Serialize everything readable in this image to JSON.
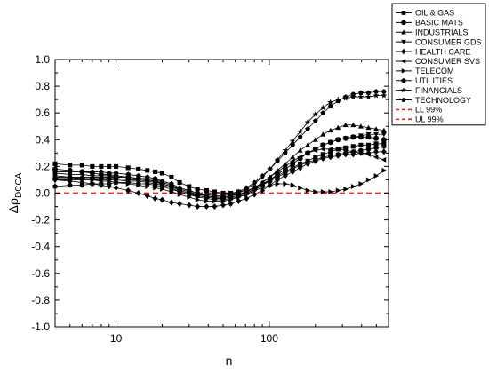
{
  "chart_data": {
    "type": "line",
    "xlabel": "n",
    "ylabel_main": "Δρ",
    "ylabel_sub": "DCCA",
    "xscale": "log",
    "xlim": [
      4,
      600
    ],
    "ylim": [
      -1.0,
      1.0
    ],
    "x_ticks": [
      10,
      100
    ],
    "x_tick_labels": [
      "10",
      "100"
    ],
    "y_ticks": [
      -1.0,
      -0.8,
      -0.6,
      -0.4,
      -0.2,
      0.0,
      0.2,
      0.4,
      0.6,
      0.8,
      1.0
    ],
    "y_tick_labels": [
      "-1.0",
      "-0.8",
      "-0.6",
      "-0.4",
      "-0.2",
      "0.0",
      "0.2",
      "0.4",
      "0.6",
      "0.8",
      "1.0"
    ],
    "grid": false,
    "legend_position": "top-right",
    "x": [
      4,
      5,
      6,
      7,
      8,
      9,
      10,
      12,
      14,
      16,
      18,
      20,
      23,
      26,
      30,
      34,
      39,
      44,
      50,
      56,
      63,
      71,
      80,
      90,
      101,
      113,
      127,
      142,
      159,
      178,
      200,
      224,
      251,
      281,
      315,
      353,
      396,
      444,
      498,
      560
    ],
    "series": [
      {
        "name": "OIL & GAS",
        "marker": "square",
        "values": [
          0.22,
          0.21,
          0.21,
          0.2,
          0.2,
          0.2,
          0.2,
          0.19,
          0.18,
          0.17,
          0.16,
          0.15,
          0.12,
          0.08,
          0.05,
          0.03,
          0.02,
          0.01,
          0.0,
          0.0,
          0.01,
          0.02,
          0.04,
          0.07,
          0.1,
          0.13,
          0.16,
          0.19,
          0.22,
          0.24,
          0.27,
          0.29,
          0.31,
          0.33,
          0.34,
          0.35,
          0.36,
          0.36,
          0.37,
          0.37
        ]
      },
      {
        "name": "BASIC MATS",
        "marker": "circle",
        "values": [
          0.18,
          0.17,
          0.16,
          0.15,
          0.14,
          0.14,
          0.13,
          0.12,
          0.11,
          0.1,
          0.09,
          0.07,
          0.05,
          0.02,
          0.0,
          -0.02,
          -0.03,
          -0.04,
          -0.04,
          -0.03,
          -0.02,
          0.0,
          0.03,
          0.06,
          0.1,
          0.14,
          0.18,
          0.22,
          0.26,
          0.3,
          0.33,
          0.36,
          0.38,
          0.4,
          0.41,
          0.42,
          0.42,
          0.42,
          0.41,
          0.4
        ]
      },
      {
        "name": "INDUSTRIALS",
        "marker": "triangle-up",
        "values": [
          0.12,
          0.12,
          0.12,
          0.12,
          0.12,
          0.12,
          0.12,
          0.12,
          0.11,
          0.11,
          0.1,
          0.09,
          0.07,
          0.04,
          0.02,
          0.0,
          -0.02,
          -0.03,
          -0.03,
          -0.02,
          -0.01,
          0.01,
          0.04,
          0.08,
          0.12,
          0.17,
          0.22,
          0.27,
          0.32,
          0.36,
          0.4,
          0.44,
          0.47,
          0.49,
          0.51,
          0.51,
          0.5,
          0.49,
          0.48,
          0.47
        ]
      },
      {
        "name": "CONSUMER GDS",
        "marker": "triangle-down",
        "values": [
          0.1,
          0.1,
          0.1,
          0.1,
          0.1,
          0.1,
          0.1,
          0.09,
          0.09,
          0.08,
          0.07,
          0.06,
          0.04,
          0.01,
          -0.01,
          -0.03,
          -0.04,
          -0.05,
          -0.05,
          -0.04,
          -0.03,
          -0.01,
          0.02,
          0.06,
          0.1,
          0.14,
          0.18,
          0.22,
          0.26,
          0.3,
          0.33,
          0.36,
          0.38,
          0.4,
          0.41,
          0.42,
          0.43,
          0.44,
          0.44,
          0.44
        ]
      },
      {
        "name": "HEALTH CARE",
        "marker": "diamond",
        "values": [
          0.1,
          0.09,
          0.08,
          0.07,
          0.06,
          0.05,
          0.04,
          0.02,
          0.0,
          -0.02,
          -0.04,
          -0.05,
          -0.07,
          -0.08,
          -0.09,
          -0.1,
          -0.1,
          -0.1,
          -0.09,
          -0.08,
          -0.06,
          -0.04,
          -0.01,
          0.02,
          0.06,
          0.1,
          0.13,
          0.16,
          0.19,
          0.22,
          0.24,
          0.26,
          0.27,
          0.28,
          0.29,
          0.29,
          0.3,
          0.3,
          0.31,
          0.31
        ]
      },
      {
        "name": "CONSUMER SVS",
        "marker": "triangle-left",
        "values": [
          0.15,
          0.14,
          0.14,
          0.13,
          0.13,
          0.13,
          0.12,
          0.12,
          0.11,
          0.1,
          0.09,
          0.08,
          0.06,
          0.03,
          0.01,
          -0.01,
          -0.02,
          -0.03,
          -0.03,
          -0.02,
          -0.01,
          0.01,
          0.04,
          0.08,
          0.12,
          0.16,
          0.2,
          0.24,
          0.27,
          0.3,
          0.32,
          0.33,
          0.33,
          0.33,
          0.32,
          0.31,
          0.3,
          0.29,
          0.27,
          0.25
        ]
      },
      {
        "name": "TELECOM",
        "marker": "triangle-right",
        "values": [
          0.13,
          0.12,
          0.11,
          0.1,
          0.09,
          0.09,
          0.08,
          0.07,
          0.06,
          0.05,
          0.04,
          0.03,
          0.01,
          -0.01,
          -0.03,
          -0.05,
          -0.06,
          -0.06,
          -0.06,
          -0.05,
          -0.03,
          -0.01,
          0.02,
          0.04,
          0.06,
          0.07,
          0.07,
          0.06,
          0.04,
          0.02,
          0.01,
          0.01,
          0.01,
          0.02,
          0.03,
          0.05,
          0.07,
          0.1,
          0.13,
          0.17
        ]
      },
      {
        "name": "UTILITIES",
        "marker": "hexagon",
        "values": [
          0.05,
          0.06,
          0.06,
          0.07,
          0.07,
          0.07,
          0.08,
          0.08,
          0.07,
          0.07,
          0.06,
          0.05,
          0.03,
          0.01,
          -0.01,
          -0.02,
          -0.03,
          -0.04,
          -0.04,
          -0.03,
          -0.02,
          0.0,
          0.03,
          0.06,
          0.09,
          0.12,
          0.15,
          0.18,
          0.21,
          0.23,
          0.25,
          0.27,
          0.28,
          0.29,
          0.3,
          0.31,
          0.32,
          0.33,
          0.34,
          0.35
        ]
      },
      {
        "name": "FINANCIALS",
        "marker": "star",
        "values": [
          0.11,
          0.11,
          0.11,
          0.11,
          0.11,
          0.11,
          0.11,
          0.1,
          0.1,
          0.09,
          0.08,
          0.07,
          0.05,
          0.03,
          0.01,
          -0.01,
          -0.02,
          -0.03,
          -0.03,
          -0.02,
          0.0,
          0.03,
          0.07,
          0.12,
          0.18,
          0.25,
          0.32,
          0.39,
          0.46,
          0.53,
          0.59,
          0.64,
          0.68,
          0.7,
          0.71,
          0.72,
          0.72,
          0.72,
          0.73,
          0.73
        ]
      },
      {
        "name": "TECHNOLOGY",
        "marker": "pentagon",
        "values": [
          0.16,
          0.16,
          0.16,
          0.16,
          0.16,
          0.15,
          0.15,
          0.14,
          0.13,
          0.12,
          0.11,
          0.09,
          0.07,
          0.04,
          0.02,
          0.0,
          -0.01,
          -0.02,
          -0.02,
          -0.01,
          0.01,
          0.04,
          0.08,
          0.13,
          0.18,
          0.24,
          0.3,
          0.36,
          0.42,
          0.48,
          0.54,
          0.6,
          0.65,
          0.69,
          0.72,
          0.74,
          0.75,
          0.75,
          0.76,
          0.76
        ]
      }
    ],
    "reference_lines": [
      {
        "name": "LL 99%",
        "y": 0.0,
        "color": "#e8202a",
        "style": "dashed"
      },
      {
        "name": "UL 99%",
        "y": 0.0,
        "color": "#e8202a",
        "style": "dashed"
      }
    ],
    "line_color": "#000000"
  }
}
